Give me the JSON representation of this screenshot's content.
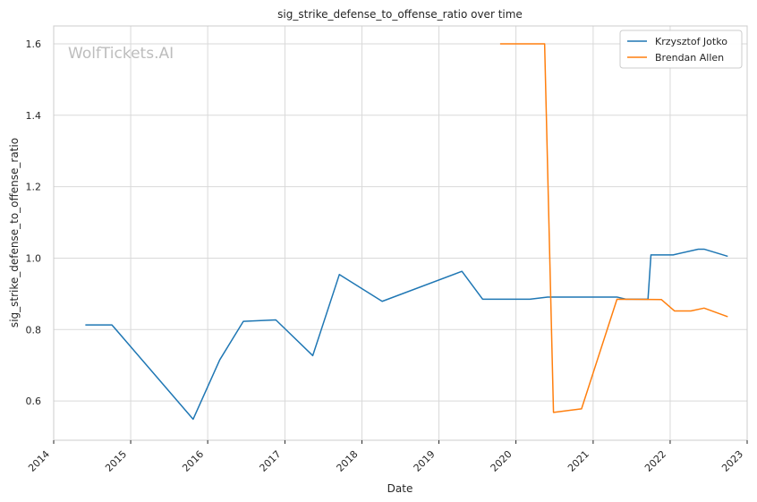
{
  "watermark": "WolfTickets.AI",
  "chart_data": {
    "type": "line",
    "title": "sig_strike_defense_to_offense_ratio over time",
    "xlabel": "Date",
    "ylabel": "sig_strike_defense_to_offense_ratio",
    "xlim": [
      "2014-01-01",
      "2023-01-01"
    ],
    "ylim": [
      0.49,
      1.65
    ],
    "x_ticks": [
      "2014-01-01",
      "2015-01-01",
      "2016-01-01",
      "2017-01-01",
      "2018-01-01",
      "2019-01-01",
      "2020-01-01",
      "2021-01-01",
      "2022-01-01",
      "2023-01-01"
    ],
    "x_tick_labels": [
      "2014",
      "2015",
      "2016",
      "2017",
      "2018",
      "2019",
      "2020",
      "2021",
      "2022",
      "2023"
    ],
    "y_ticks": [
      0.6,
      0.8,
      1.0,
      1.2,
      1.4,
      1.6
    ],
    "y_tick_labels": [
      "0.6",
      "0.8",
      "1.0",
      "1.2",
      "1.4",
      "1.6"
    ],
    "grid": true,
    "legend_position": "top-right",
    "series": [
      {
        "name": "Krzysztof Jotko",
        "color": "#1f77b4",
        "points": [
          {
            "x": "2014-05-31",
            "y": 0.813
          },
          {
            "x": "2014-10-04",
            "y": 0.813
          },
          {
            "x": "2015-10-24",
            "y": 0.549
          },
          {
            "x": "2016-02-27",
            "y": 0.715
          },
          {
            "x": "2016-06-18",
            "y": 0.823
          },
          {
            "x": "2016-11-19",
            "y": 0.827
          },
          {
            "x": "2017-05-13",
            "y": 0.727
          },
          {
            "x": "2017-09-16",
            "y": 0.954
          },
          {
            "x": "2018-04-07",
            "y": 0.879
          },
          {
            "x": "2019-04-20",
            "y": 0.963
          },
          {
            "x": "2019-07-27",
            "y": 0.885
          },
          {
            "x": "2020-03-07",
            "y": 0.885
          },
          {
            "x": "2020-05-30",
            "y": 0.891
          },
          {
            "x": "2021-04-24",
            "y": 0.891
          },
          {
            "x": "2021-06-05",
            "y": 0.885
          },
          {
            "x": "2021-09-18",
            "y": 0.885
          },
          {
            "x": "2021-10-02",
            "y": 1.009
          },
          {
            "x": "2022-01-15",
            "y": 1.009
          },
          {
            "x": "2022-05-14",
            "y": 1.025
          },
          {
            "x": "2022-06-11",
            "y": 1.025
          },
          {
            "x": "2022-10-01",
            "y": 1.005
          }
        ]
      },
      {
        "name": "Brendan Allen",
        "color": "#ff7f0e",
        "points": [
          {
            "x": "2019-10-18",
            "y": 1.6
          },
          {
            "x": "2020-05-16",
            "y": 1.6
          },
          {
            "x": "2020-06-27",
            "y": 0.568
          },
          {
            "x": "2020-11-07",
            "y": 0.578
          },
          {
            "x": "2021-04-24",
            "y": 0.885
          },
          {
            "x": "2021-11-20",
            "y": 0.884
          },
          {
            "x": "2022-01-22",
            "y": 0.852
          },
          {
            "x": "2022-04-09",
            "y": 0.852
          },
          {
            "x": "2022-06-11",
            "y": 0.86
          },
          {
            "x": "2022-10-01",
            "y": 0.836
          }
        ]
      }
    ]
  }
}
